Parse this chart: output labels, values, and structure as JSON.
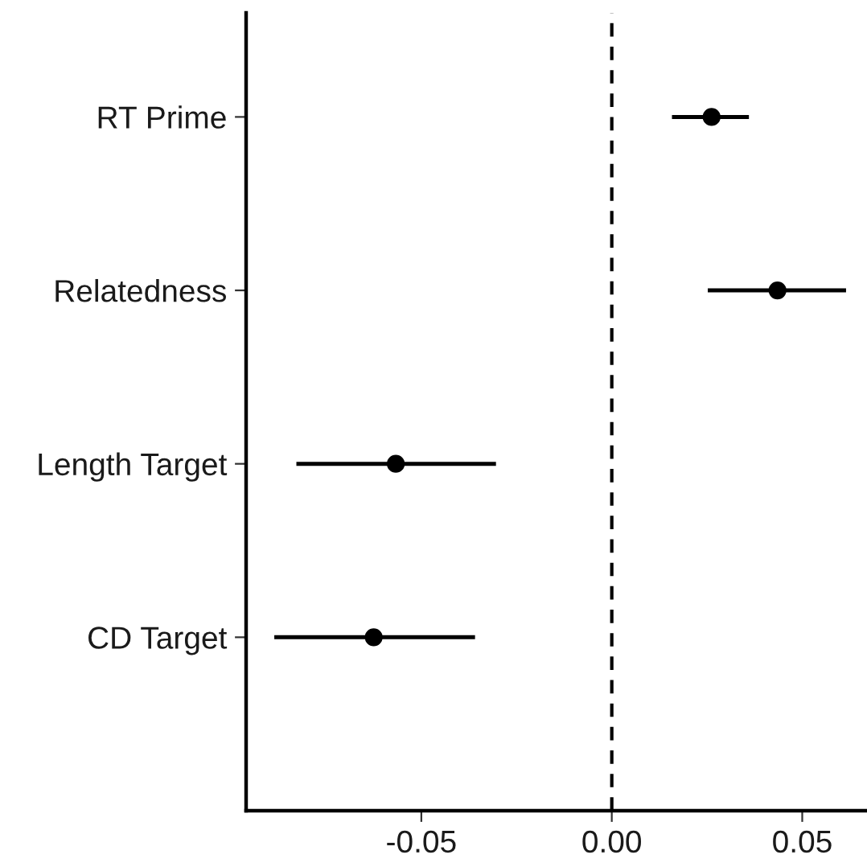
{
  "chart_data": {
    "type": "scatter",
    "orientation": "horizontal",
    "categories": [
      "RT Prime",
      "Relatedness",
      "Length Target",
      "CD Target"
    ],
    "values": [
      0.0262,
      0.0435,
      -0.0567,
      -0.0625
    ],
    "errors": [
      [
        0.0158,
        0.036
      ],
      [
        0.0252,
        0.0615
      ],
      [
        -0.0828,
        -0.0304
      ],
      [
        -0.0886,
        -0.0359
      ]
    ],
    "color": "#000000",
    "marker": "circle",
    "xlim": [
      -0.096,
      0.067
    ],
    "xticks": [
      {
        "value": -0.05,
        "label": "-0.05"
      },
      {
        "value": 0,
        "label": "0.00"
      },
      {
        "value": 0.05,
        "label": "0.05"
      }
    ],
    "ref_lines": [
      {
        "axis": "x",
        "value": 0,
        "line_style": "dashed",
        "color": "#000000"
      }
    ],
    "grid": false,
    "legend": false
  }
}
